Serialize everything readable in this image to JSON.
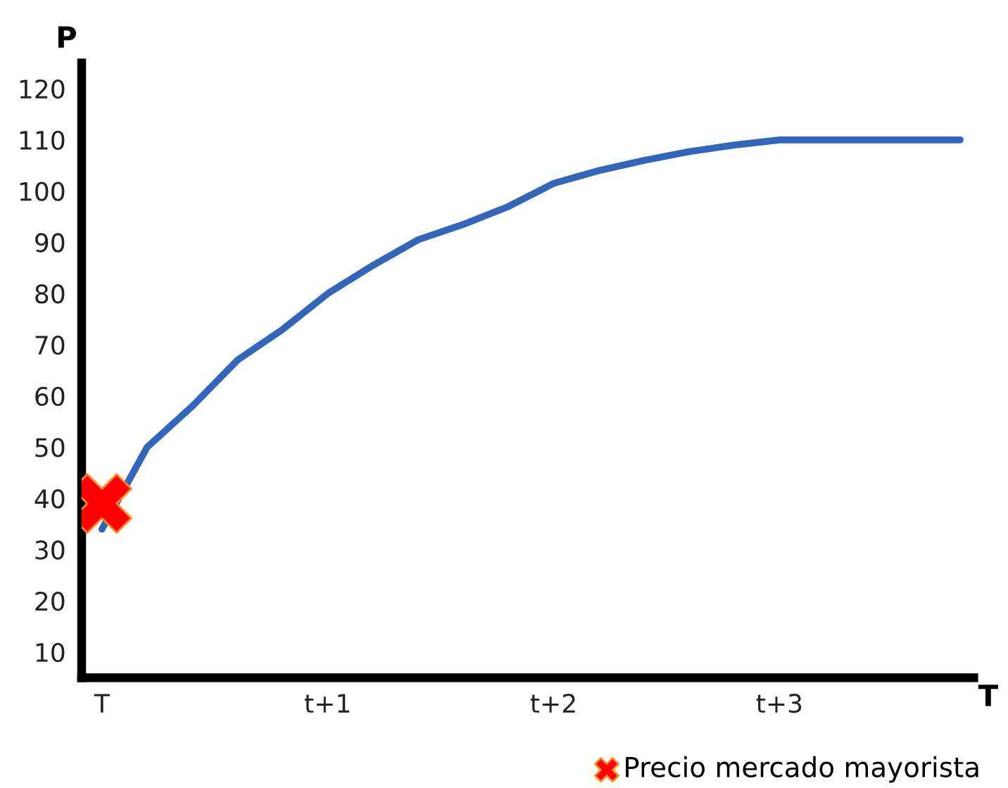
{
  "chart_data": {
    "type": "line",
    "xlabel": "T",
    "ylabel": "P",
    "categories": [
      "T",
      null,
      null,
      null,
      null,
      "t+1",
      null,
      null,
      null,
      null,
      "t+2",
      null,
      null,
      null,
      null,
      "t+3",
      null,
      null,
      null,
      null
    ],
    "ylim": [
      5,
      125
    ],
    "yticks": [
      10,
      20,
      30,
      40,
      50,
      60,
      70,
      80,
      90,
      100,
      110,
      120
    ],
    "grid": false,
    "legend": "bottom right",
    "series": [
      {
        "color": "#3366bb",
        "values": [
          34,
          50,
          58,
          67,
          73,
          80,
          85.5,
          90.5,
          93.5,
          97,
          101.5,
          104,
          106,
          107.7,
          109,
          110,
          110,
          110,
          110,
          110
        ]
      },
      {
        "type": "scatter",
        "name": "Precio mercado mayorista",
        "marker": "cross",
        "color": "#ff0000",
        "x": [
          "T"
        ],
        "values": [
          39
        ]
      }
    ]
  }
}
